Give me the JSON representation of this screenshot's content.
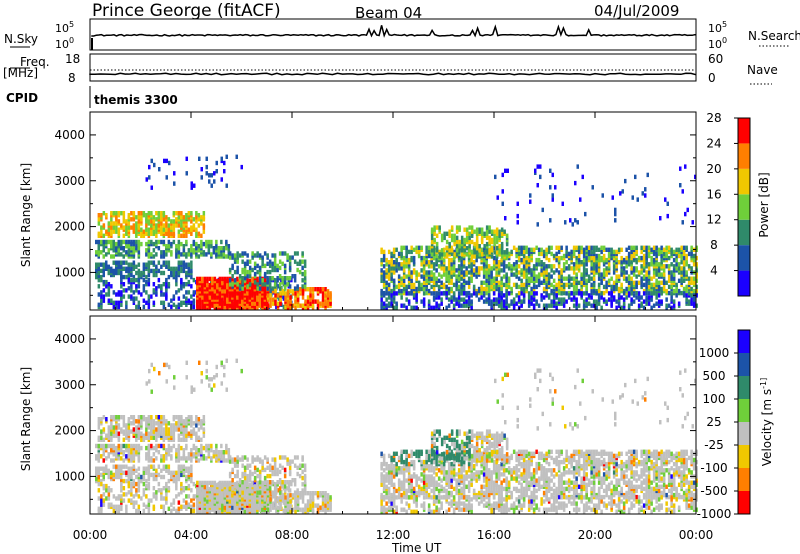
{
  "header": {
    "station": "Prince George (fitACF)",
    "beam": "Beam 04",
    "date": "04/Jul/2009"
  },
  "noise_panel": {
    "left_label": "N.Sky",
    "left_ticks": [
      "10^5",
      "10^0"
    ],
    "right_ticks": [
      "10^5",
      "10^0"
    ],
    "right_label": "N.Search"
  },
  "freq_panel": {
    "left_label_1": "Freq.",
    "left_label_2": "[MHz]",
    "left_ticks": [
      "18",
      "8"
    ],
    "right_ticks": [
      "60",
      "0"
    ],
    "right_label": "Nave"
  },
  "cpid": {
    "label": "CPID",
    "value": "themis 3300"
  },
  "x_axis": {
    "ticks": [
      "00:00",
      "04:00",
      "08:00",
      "12:00",
      "16:00",
      "20:00",
      "00:00"
    ],
    "label": "Time UT"
  },
  "chart_data": [
    {
      "type": "heatmap",
      "name": "power",
      "ylabel": "Slant Range [km]",
      "yticks": [
        1000,
        2000,
        3000,
        4000
      ],
      "ylim": [
        180,
        4500
      ],
      "xlim": [
        0,
        24
      ],
      "colorbar_label": "Power [dB]",
      "colorbar_ticks": [
        "4",
        "8",
        "12",
        "16",
        "20",
        "24",
        "28"
      ],
      "colors": [
        "#1b00ff",
        "#1c53a8",
        "#2f8a6a",
        "#6fcf3a",
        "#f0c800",
        "#ff7f00",
        "#ff0000"
      ],
      "features": [
        {
          "t0": 0.3,
          "t1": 4.5,
          "r0": 1750,
          "r1": 2200,
          "level": "medium-high"
        },
        {
          "t0": 4.0,
          "t1": 7.0,
          "r0": 180,
          "r1": 900,
          "level": "high"
        },
        {
          "t0": 11.5,
          "t1": 24.0,
          "r0": 500,
          "r1": 1500,
          "level": "medium"
        },
        {
          "t0": 13.5,
          "t1": 16.5,
          "r0": 1300,
          "r1": 1900,
          "level": "medium"
        }
      ]
    },
    {
      "type": "heatmap",
      "name": "velocity",
      "ylabel": "Slant Range [km]",
      "yticks": [
        1000,
        2000,
        3000,
        4000
      ],
      "ylim": [
        180,
        4500
      ],
      "xlim": [
        0,
        24
      ],
      "colorbar_label": "Velocity [m s^-1]",
      "colorbar_ticks": [
        "1000",
        "500",
        "100",
        "25",
        "-25",
        "-100",
        "-500",
        "-1000"
      ],
      "colors": [
        "#1b00ff",
        "#1c53a8",
        "#2f8a6a",
        "#6fcf3a",
        "#c0c0c0",
        "#f0c800",
        "#ff7f00",
        "#ff0000"
      ]
    }
  ]
}
